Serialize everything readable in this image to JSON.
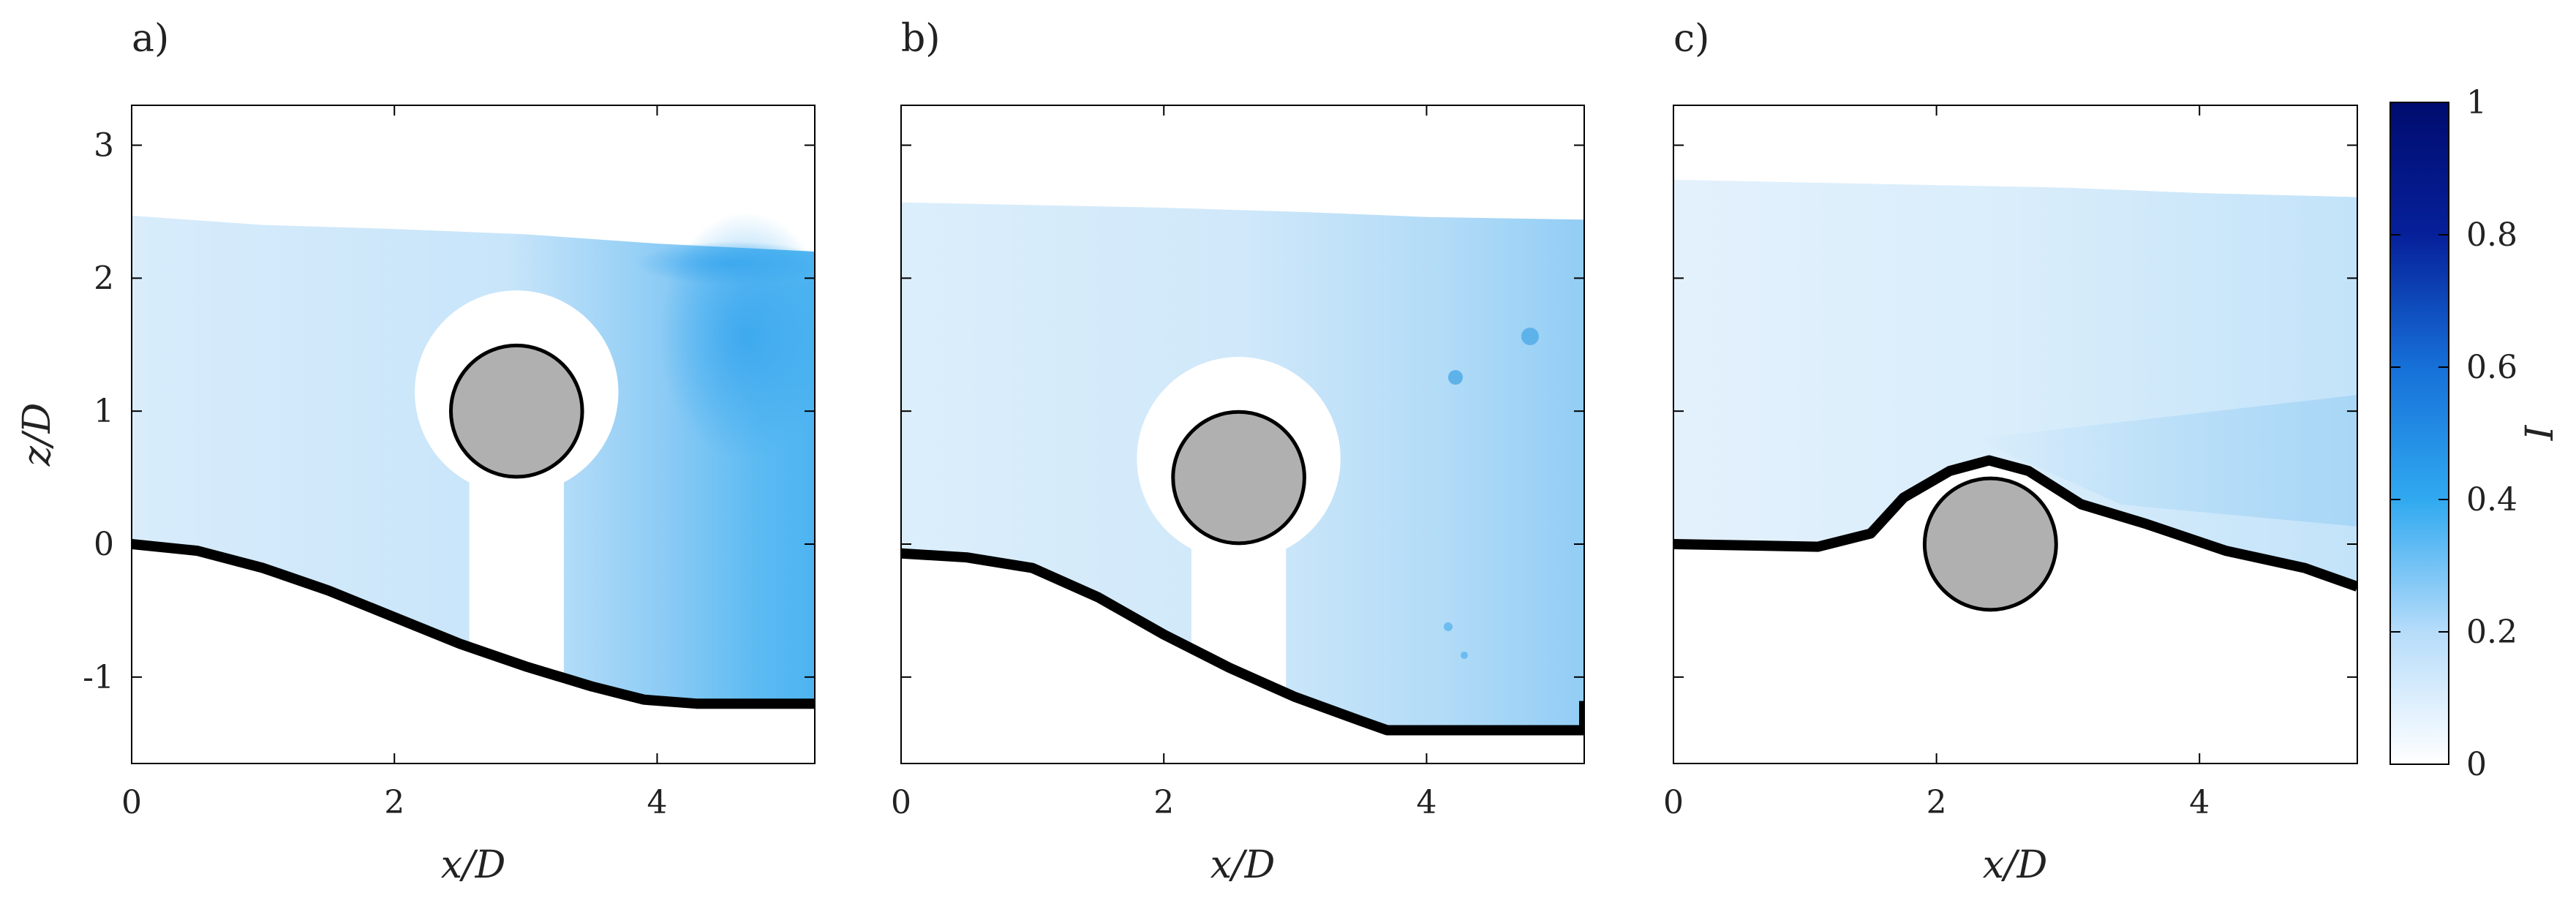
{
  "chart_data": [
    {
      "type": "heatmap",
      "panel_label": "a)",
      "xlabel": "x/D",
      "ylabel": "z/D",
      "xlim": [
        0,
        5.2
      ],
      "ylim": [
        -1.65,
        3.3
      ],
      "xticks": [
        0,
        2,
        4
      ],
      "xtick_labels": [
        "0",
        "2",
        "4"
      ],
      "yticks": [
        -1,
        0,
        1,
        2,
        3
      ],
      "ytick_labels": [
        "-1",
        "0",
        "1",
        "2",
        "3"
      ],
      "cylinder": {
        "x": 2.93,
        "z": 1.0,
        "diameter": 1.0
      },
      "bed_profile": [
        [
          0,
          0
        ],
        [
          0.5,
          -0.05
        ],
        [
          1,
          -0.18
        ],
        [
          1.5,
          -0.35
        ],
        [
          2,
          -0.55
        ],
        [
          2.5,
          -0.75
        ],
        [
          3,
          -0.92
        ],
        [
          3.5,
          -1.07
        ],
        [
          3.9,
          -1.17
        ],
        [
          4.3,
          -1.2
        ],
        [
          5.2,
          -1.2
        ]
      ],
      "water_surface": [
        [
          0,
          2.47
        ],
        [
          1,
          2.4
        ],
        [
          2,
          2.37
        ],
        [
          3,
          2.33
        ],
        [
          4,
          2.26
        ],
        [
          5.2,
          2.2
        ]
      ],
      "intensity_levels": [
        {
          "x": 0.5,
          "z": 1.0,
          "I": 0.12
        },
        {
          "x": 4.8,
          "z": 0.6,
          "I": 0.33
        },
        {
          "x": 4.2,
          "z": 2.2,
          "I": 0.3
        }
      ]
    },
    {
      "type": "heatmap",
      "panel_label": "b)",
      "xlabel": "x/D",
      "ylabel": "",
      "xlim": [
        0,
        5.2
      ],
      "ylim": [
        -1.65,
        3.3
      ],
      "xticks": [
        0,
        2,
        4
      ],
      "xtick_labels": [
        "0",
        "2",
        "4"
      ],
      "yticks": [
        -1,
        0,
        1,
        2,
        3
      ],
      "ytick_labels": [],
      "cylinder": {
        "x": 2.57,
        "z": 0.5,
        "diameter": 1.0
      },
      "bed_profile": [
        [
          0,
          -0.07
        ],
        [
          0.5,
          -0.1
        ],
        [
          1,
          -0.18
        ],
        [
          1.5,
          -0.4
        ],
        [
          2,
          -0.68
        ],
        [
          2.5,
          -0.93
        ],
        [
          3,
          -1.15
        ],
        [
          3.5,
          -1.33
        ],
        [
          3.7,
          -1.4
        ],
        [
          5.2,
          -1.4
        ],
        [
          5.2,
          -1.18
        ]
      ],
      "water_surface": [
        [
          0,
          2.57
        ],
        [
          1,
          2.55
        ],
        [
          2,
          2.53
        ],
        [
          3,
          2.5
        ],
        [
          4,
          2.46
        ],
        [
          5.2,
          2.44
        ]
      ],
      "intensity_levels": [
        {
          "x": 0.5,
          "z": 1.0,
          "I": 0.1
        },
        {
          "x": 4.6,
          "z": 0.0,
          "I": 0.2
        },
        {
          "x": 4.7,
          "z": 1.5,
          "I": 0.22
        }
      ]
    },
    {
      "type": "heatmap",
      "panel_label": "c)",
      "xlabel": "x/D",
      "ylabel": "",
      "xlim": [
        0,
        5.2
      ],
      "ylim": [
        -1.65,
        3.3
      ],
      "xticks": [
        0,
        2,
        4
      ],
      "xtick_labels": [
        "0",
        "2",
        "4"
      ],
      "yticks": [
        -1,
        0,
        1,
        2,
        3
      ],
      "ytick_labels": [],
      "cylinder": {
        "x": 2.41,
        "z": 0.0,
        "diameter": 1.0
      },
      "bed_profile": [
        [
          0,
          0
        ],
        [
          1.1,
          -0.02
        ],
        [
          1.5,
          0.08
        ],
        [
          1.75,
          0.35
        ],
        [
          2.1,
          0.55
        ],
        [
          2.4,
          0.63
        ],
        [
          2.7,
          0.55
        ],
        [
          3.1,
          0.3
        ],
        [
          3.6,
          0.15
        ],
        [
          4.2,
          -0.05
        ],
        [
          4.8,
          -0.18
        ],
        [
          5.2,
          -0.32
        ]
      ],
      "water_surface": [
        [
          0,
          2.74
        ],
        [
          1,
          2.72
        ],
        [
          2,
          2.7
        ],
        [
          3,
          2.68
        ],
        [
          4,
          2.64
        ],
        [
          5.2,
          2.61
        ]
      ],
      "intensity_levels": [
        {
          "x": 0.5,
          "z": 1.5,
          "I": 0.08
        },
        {
          "x": 4.8,
          "z": 0.8,
          "I": 0.2
        }
      ]
    }
  ],
  "colorbar": {
    "label": "I",
    "range": [
      0,
      1
    ],
    "ticks": [
      0,
      0.2,
      0.4,
      0.6,
      0.8,
      1
    ],
    "tick_labels": [
      "0",
      "0.2",
      "0.4",
      "0.6",
      "0.8",
      "1"
    ],
    "colormap": [
      "#ffffff",
      "#b6dcfa",
      "#30a9f0",
      "#1670d8",
      "#06209a",
      "#000c6e"
    ]
  },
  "colors": {
    "cylinder_fill": "#b0b0b0",
    "bed_line": "#000000",
    "flow_light": "#d9edfb",
    "flow_mid": "#a8d6f6",
    "flow_strong": "#4fb6f2"
  }
}
